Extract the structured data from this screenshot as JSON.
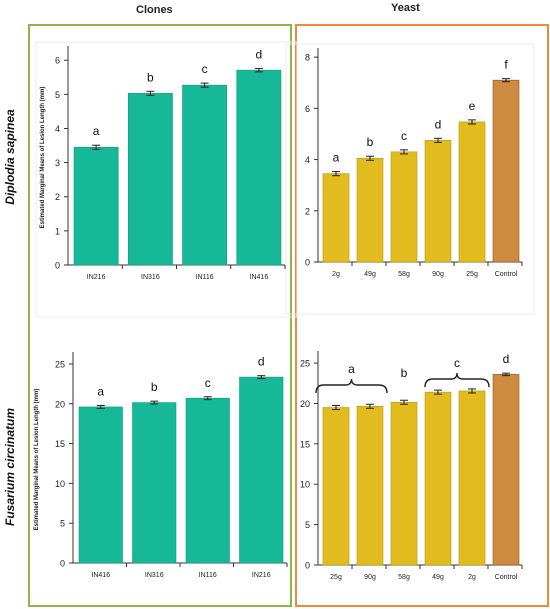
{
  "headers": {
    "clones": "Clones",
    "yeast": "Yeast",
    "row1": "Diplodia sapinea",
    "row2": "Fusarium circinatum"
  },
  "colors": {
    "teal": "#17b898",
    "gold": "#e2bc1f",
    "control": "#cd8a40",
    "clones_frame": "#8fb54a",
    "yeast_frame": "#ec8a3e"
  },
  "chart_data": [
    {
      "type": "bar",
      "panel": "clones-diplodia",
      "ylabel": "Estimated Marginal Means of Lesion Length (mm)",
      "ylim": [
        0,
        6.3
      ],
      "yticks": [
        0,
        1,
        2,
        3,
        4,
        5,
        6
      ],
      "categories": [
        "IN216",
        "IN316",
        "IN116",
        "IN416"
      ],
      "values": [
        3.45,
        5.03,
        5.27,
        5.71
      ],
      "errors": [
        0.06,
        0.06,
        0.06,
        0.05
      ],
      "letters": [
        "a",
        "b",
        "c",
        "d"
      ],
      "colors": [
        "teal",
        "teal",
        "teal",
        "teal"
      ]
    },
    {
      "type": "bar",
      "panel": "yeast-diplodia",
      "ylabel": "",
      "ylim": [
        0,
        8.2
      ],
      "yticks": [
        0,
        2,
        4,
        6,
        8
      ],
      "categories": [
        "2g",
        "49g",
        "58g",
        "90g",
        "25g",
        "Control"
      ],
      "values": [
        3.45,
        4.05,
        4.3,
        4.75,
        5.47,
        7.1
      ],
      "errors": [
        0.08,
        0.08,
        0.08,
        0.08,
        0.08,
        0.06
      ],
      "letters": [
        "a",
        "b",
        "c",
        "d",
        "e",
        "f"
      ],
      "colors": [
        "gold",
        "gold",
        "gold",
        "gold",
        "gold",
        "control"
      ]
    },
    {
      "type": "bar",
      "panel": "clones-fusarium",
      "ylabel": "Estimated Marginal Means of Lesion Length (mm)",
      "ylim": [
        0,
        26
      ],
      "yticks": [
        0,
        5,
        10,
        15,
        20,
        25
      ],
      "categories": [
        "IN416",
        "IN316",
        "IN116",
        "IN216"
      ],
      "values": [
        19.6,
        20.15,
        20.7,
        23.35
      ],
      "errors": [
        0.18,
        0.18,
        0.18,
        0.18
      ],
      "letters": [
        "a",
        "b",
        "c",
        "d"
      ],
      "colors": [
        "teal",
        "teal",
        "teal",
        "teal"
      ]
    },
    {
      "type": "bar",
      "panel": "yeast-fusarium",
      "ylabel": "",
      "ylim": [
        0,
        26
      ],
      "yticks": [
        0,
        5,
        10,
        15,
        20,
        25
      ],
      "categories": [
        "25g",
        "90g",
        "58g",
        "49g",
        "2g",
        "Control"
      ],
      "values": [
        19.5,
        19.65,
        20.15,
        21.4,
        21.55,
        23.6
      ],
      "errors": [
        0.25,
        0.25,
        0.25,
        0.25,
        0.25,
        0.15
      ],
      "letters": [
        "",
        "",
        "",
        "",
        "",
        "d"
      ],
      "group_letters": [
        {
          "letter": "a",
          "from": 0,
          "to": 1
        },
        {
          "letter": "b",
          "from": 2,
          "to": 2
        },
        {
          "letter": "c",
          "from": 3,
          "to": 4
        }
      ],
      "colors": [
        "gold",
        "gold",
        "gold",
        "gold",
        "gold",
        "control"
      ]
    }
  ]
}
